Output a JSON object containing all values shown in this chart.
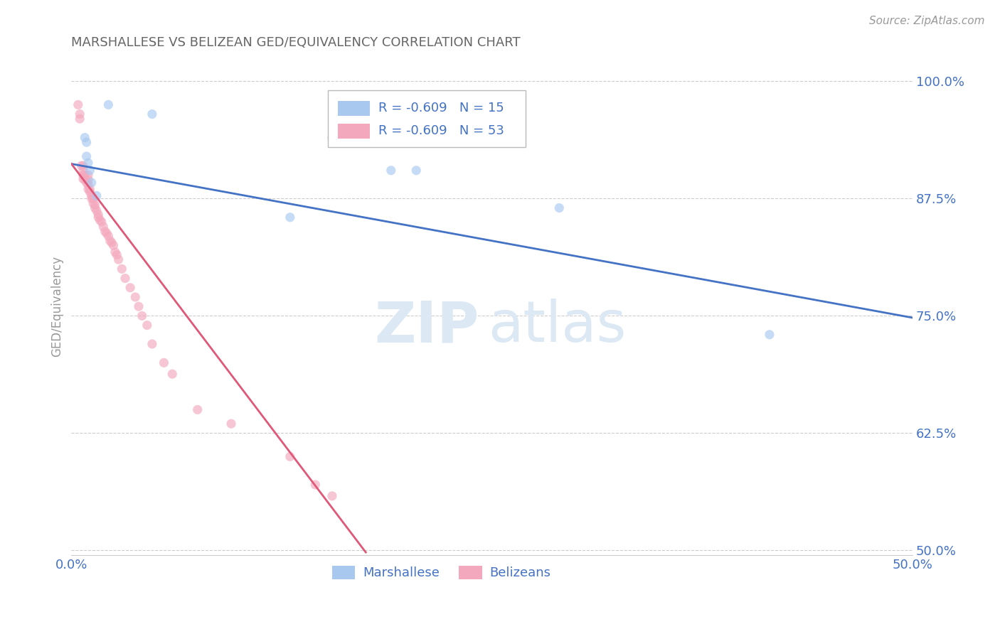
{
  "title": "MARSHALLESE VS BELIZEAN GED/EQUIVALENCY CORRELATION CHART",
  "source": "Source: ZipAtlas.com",
  "ylabel": "GED/Equivalency",
  "xlim": [
    0.0,
    0.5
  ],
  "ylim": [
    0.495,
    1.025
  ],
  "yticks": [
    0.5,
    0.625,
    0.75,
    0.875,
    1.0
  ],
  "ytick_labels": [
    "50.0%",
    "62.5%",
    "75.0%",
    "87.5%",
    "100.0%"
  ],
  "xticks": [
    0.0,
    0.1,
    0.2,
    0.3,
    0.4,
    0.5
  ],
  "xtick_labels": [
    "0.0%",
    "",
    "",
    "",
    "",
    "50.0%"
  ],
  "blue_label": "Marshallese",
  "pink_label": "Belizeans",
  "legend_blue_R": "R = -0.609",
  "legend_blue_N": "N = 15",
  "legend_pink_R": "R = -0.609",
  "legend_pink_N": "N = 53",
  "blue_scatter_x": [
    0.022,
    0.048,
    0.008,
    0.009,
    0.009,
    0.01,
    0.011,
    0.012,
    0.015,
    0.13,
    0.155,
    0.19,
    0.205,
    0.29,
    0.415
  ],
  "blue_scatter_y": [
    0.975,
    0.965,
    0.94,
    0.935,
    0.92,
    0.913,
    0.905,
    0.892,
    0.878,
    0.855,
    0.94,
    0.905,
    0.905,
    0.865,
    0.73
  ],
  "pink_scatter_x": [
    0.004,
    0.005,
    0.005,
    0.006,
    0.007,
    0.007,
    0.007,
    0.007,
    0.008,
    0.008,
    0.009,
    0.01,
    0.01,
    0.01,
    0.01,
    0.011,
    0.011,
    0.012,
    0.012,
    0.013,
    0.013,
    0.014,
    0.014,
    0.015,
    0.016,
    0.016,
    0.017,
    0.018,
    0.019,
    0.02,
    0.021,
    0.022,
    0.023,
    0.024,
    0.025,
    0.026,
    0.027,
    0.028,
    0.03,
    0.032,
    0.035,
    0.038,
    0.04,
    0.042,
    0.045,
    0.048,
    0.055,
    0.06,
    0.075,
    0.095,
    0.13,
    0.145,
    0.155
  ],
  "pink_scatter_y": [
    0.975,
    0.965,
    0.96,
    0.91,
    0.91,
    0.905,
    0.9,
    0.896,
    0.9,
    0.895,
    0.892,
    0.9,
    0.895,
    0.89,
    0.885,
    0.885,
    0.882,
    0.878,
    0.875,
    0.875,
    0.87,
    0.868,
    0.865,
    0.862,
    0.858,
    0.855,
    0.852,
    0.85,
    0.845,
    0.84,
    0.838,
    0.835,
    0.83,
    0.828,
    0.825,
    0.818,
    0.815,
    0.81,
    0.8,
    0.79,
    0.78,
    0.77,
    0.76,
    0.75,
    0.74,
    0.72,
    0.7,
    0.688,
    0.65,
    0.635,
    0.6,
    0.57,
    0.558
  ],
  "blue_line_x": [
    0.0,
    0.5
  ],
  "blue_line_y": [
    0.912,
    0.748
  ],
  "pink_line_x": [
    0.0,
    0.175
  ],
  "pink_line_y": [
    0.912,
    0.498
  ],
  "blue_color": "#a8c8f0",
  "pink_color": "#f4a8be",
  "blue_line_color": "#4472c4",
  "pink_line_color": "#e05878",
  "background_color": "#ffffff",
  "grid_color": "#cccccc",
  "title_color": "#555555",
  "axis_color": "#4472c4",
  "watermark_zip": "ZIP",
  "watermark_atlas": "atlas",
  "marker_size": 90,
  "marker_alpha": 0.65
}
